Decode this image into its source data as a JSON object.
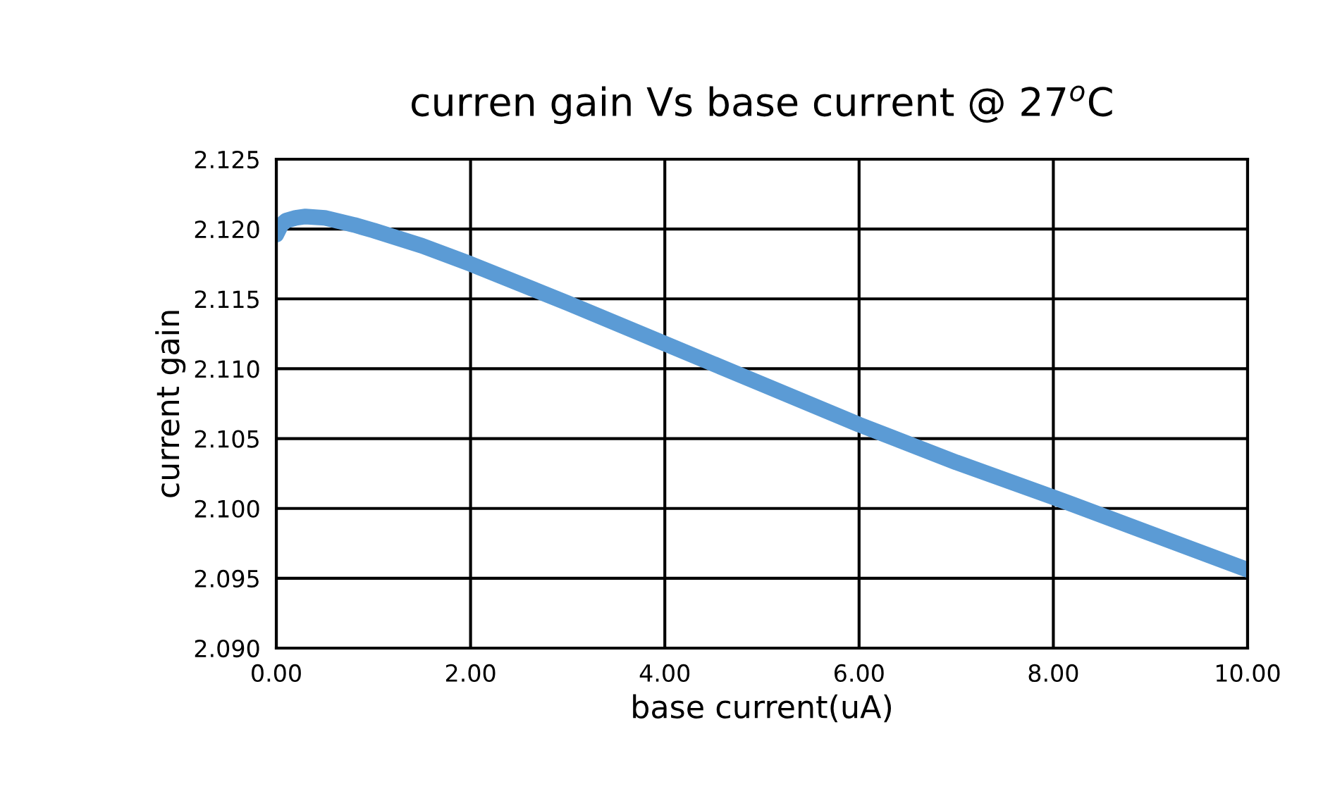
{
  "chart_data": {
    "type": "line",
    "title": "curren gain Vs base current @ 27$^{o}$C",
    "xlabel": "base current(uA)",
    "ylabel": "current gain",
    "xlim": [
      0,
      10
    ],
    "xticks": [
      {
        "value": 0,
        "label": "0.00"
      },
      {
        "value": 2,
        "label": "2.00"
      },
      {
        "value": 4,
        "label": "4.00"
      },
      {
        "value": 6,
        "label": "6.00"
      },
      {
        "value": 8,
        "label": "8.00"
      },
      {
        "value": 10,
        "label": "10.00"
      }
    ],
    "ylim": [
      2.09,
      2.125
    ],
    "yticks": [
      {
        "value": 2.09,
        "label": "2.090"
      },
      {
        "value": 2.095,
        "label": "2.095"
      },
      {
        "value": 2.1,
        "label": "2.100"
      },
      {
        "value": 2.105,
        "label": "2.105"
      },
      {
        "value": 2.11,
        "label": "2.110"
      },
      {
        "value": 2.115,
        "label": "2.115"
      },
      {
        "value": 2.12,
        "label": "2.120"
      },
      {
        "value": 2.125,
        "label": "2.125"
      }
    ],
    "grid": true,
    "legend": false,
    "line_style": "solid",
    "series": [
      {
        "color": "#5b9bd5",
        "x": [
          0,
          0.05,
          0.1,
          0.2,
          0.3,
          0.5,
          0.8,
          1.0,
          1.5,
          2,
          3,
          4,
          5,
          6,
          7,
          8,
          9,
          10
        ],
        "values": [
          2.1196,
          2.1203,
          2.1206,
          2.1208,
          2.1209,
          2.1208,
          2.1203,
          2.1199,
          2.1188,
          2.1175,
          2.1147,
          2.1118,
          2.1089,
          2.106,
          2.1033,
          2.1008,
          2.0982,
          2.0956
        ]
      }
    ]
  }
}
